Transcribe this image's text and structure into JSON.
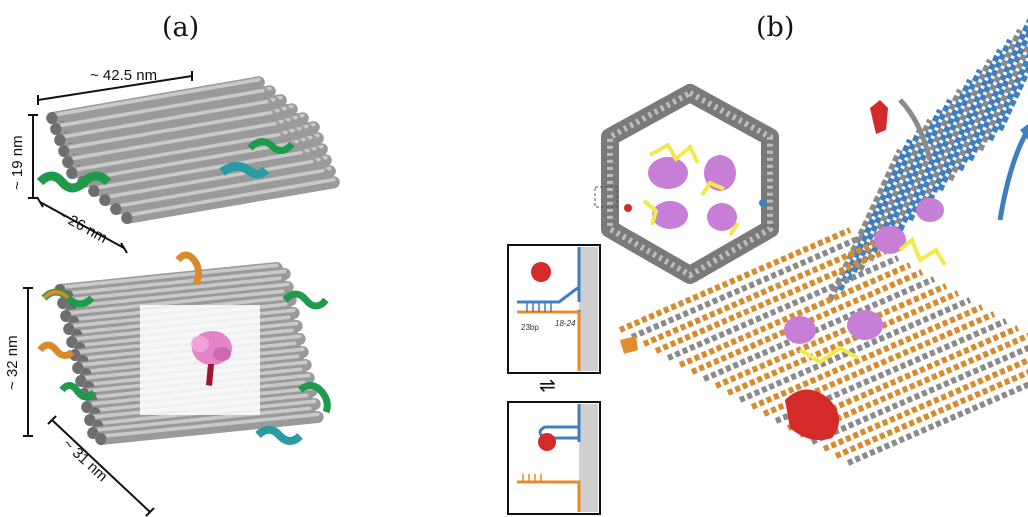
{
  "figure": {
    "panel_a": {
      "label": "(a)",
      "top_structure": {
        "dimension_length": "~ 42.5 nm",
        "dimension_height": "~ 19 nm",
        "dimension_depth": "~ 26 nm"
      },
      "bottom_structure": {
        "dimension_height": "~ 32 nm",
        "dimension_depth": "~ 31 nm"
      }
    },
    "panel_b": {
      "label": "(b)",
      "inset": {
        "label_bp": "23bp",
        "label_range": "18-24",
        "equilibrium_symbol": "⇌"
      }
    },
    "colors": {
      "helix_gray": "#9a9a9a",
      "green": "#1e9a4a",
      "orange": "#d98a2b",
      "teal": "#2a9aa5",
      "pink": "#e07fbf",
      "red": "#d42a2a",
      "blue": "#3f7fc0",
      "yellow": "#f2ea4a",
      "violet": "#c77ed6"
    }
  }
}
